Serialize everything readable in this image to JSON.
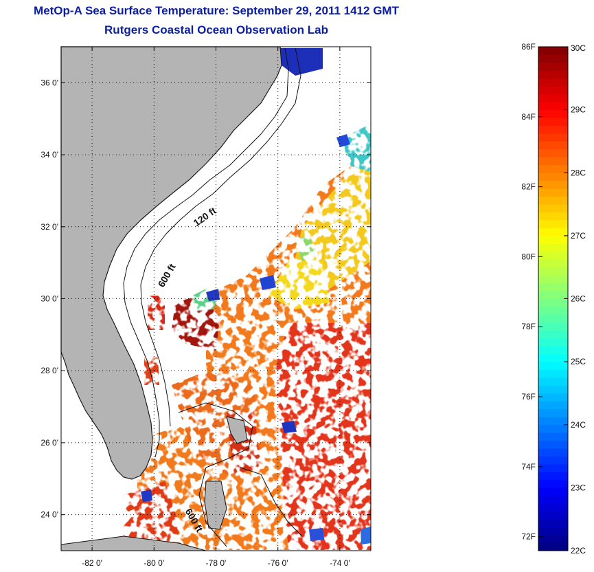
{
  "title": {
    "line1": "MetOp-A Sea Surface Temperature:  September 29, 2011 1412 GMT",
    "line2": "Rutgers Coastal Ocean Observation Lab"
  },
  "map": {
    "lat_labels": [
      "24 0'",
      "26 0'",
      "28 0'",
      "30 0'",
      "32 0'",
      "34 0'",
      "36 0'"
    ],
    "lat_values": [
      24,
      26,
      28,
      30,
      32,
      34,
      36
    ],
    "lon_labels": [
      "-82 0'",
      "-80 0'",
      "-78 0'",
      "-76 0'",
      "-74 0'"
    ],
    "lon_values": [
      -82,
      -80,
      -78,
      -76,
      -74
    ],
    "extent": {
      "lon_min": -83.0,
      "lon_max": -73.0,
      "lat_min": 23.0,
      "lat_max": 37.0
    },
    "contour_labels": [
      {
        "text": "120 ft",
        "lon": -78.3,
        "lat": 32.2,
        "angle": -35
      },
      {
        "text": "600 ft",
        "lon": -79.5,
        "lat": 30.6,
        "angle": -60
      },
      {
        "text": "600 ft",
        "lon": -78.8,
        "lat": 23.8,
        "angle": 60
      }
    ],
    "land_color": "#b4b4b4"
  },
  "colorbar": {
    "celsius_labels": [
      "30C",
      "29C",
      "28C",
      "27C",
      "26C",
      "25C",
      "24C",
      "23C",
      "22C"
    ],
    "celsius_values": [
      30,
      29,
      28,
      27,
      26,
      25,
      24,
      23,
      22
    ],
    "fahrenheit_labels": [
      "86F",
      "84F",
      "82F",
      "80F",
      "78F",
      "76F",
      "74F",
      "72F"
    ],
    "fahrenheit_values": [
      86,
      84,
      82,
      80,
      78,
      76,
      74,
      72
    ],
    "range_c": [
      22,
      30
    ],
    "colormap": "jet"
  }
}
